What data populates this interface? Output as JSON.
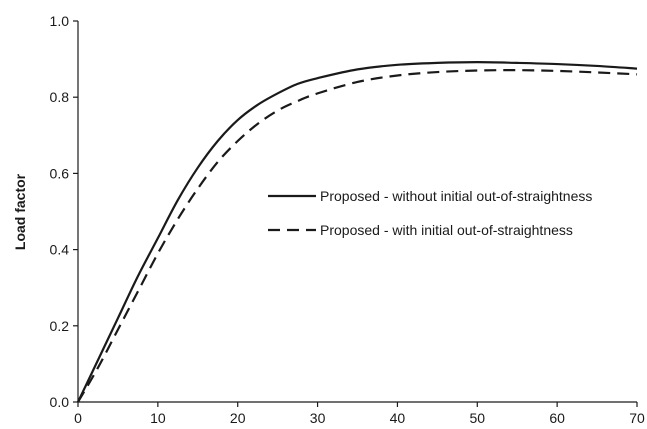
{
  "chart_data": {
    "type": "line",
    "title": "",
    "xlabel": "",
    "ylabel": "Load factor",
    "xlim": [
      0,
      70
    ],
    "ylim": [
      0.0,
      1.0
    ],
    "xticks": [
      0,
      10,
      20,
      30,
      40,
      50,
      60,
      70
    ],
    "yticks": [
      0.0,
      0.2,
      0.4,
      0.6,
      0.8,
      1.0
    ],
    "xtick_labels": [
      "0",
      "10",
      "20",
      "30",
      "40",
      "50",
      "60",
      "70"
    ],
    "ytick_labels": [
      "0.0",
      "0.2",
      "0.4",
      "0.6",
      "0.8",
      "1.0"
    ],
    "grid": false,
    "legend_position": "right",
    "series": [
      {
        "name": "Proposed - without initial out-of-straightness",
        "style": "solid",
        "color": "#1a1a1a",
        "x": [
          0,
          2.5,
          5,
          7.5,
          10,
          12.5,
          15,
          17.5,
          20,
          22.5,
          25,
          27.5,
          30,
          35,
          40,
          45,
          50,
          55,
          60,
          65,
          70
        ],
        "y": [
          0.0,
          0.11,
          0.22,
          0.33,
          0.43,
          0.53,
          0.615,
          0.685,
          0.74,
          0.78,
          0.81,
          0.835,
          0.85,
          0.873,
          0.885,
          0.89,
          0.892,
          0.89,
          0.887,
          0.882,
          0.875
        ]
      },
      {
        "name": "Proposed - with initial out-of-straightness",
        "style": "dashed",
        "color": "#1a1a1a",
        "x": [
          0,
          2.5,
          5,
          7.5,
          10,
          12.5,
          15,
          17.5,
          20,
          22.5,
          25,
          27.5,
          30,
          35,
          40,
          45,
          50,
          55,
          60,
          65,
          70
        ],
        "y": [
          0.0,
          0.09,
          0.19,
          0.29,
          0.39,
          0.48,
          0.56,
          0.63,
          0.685,
          0.73,
          0.765,
          0.79,
          0.81,
          0.84,
          0.857,
          0.866,
          0.87,
          0.871,
          0.869,
          0.865,
          0.86
        ]
      }
    ]
  }
}
